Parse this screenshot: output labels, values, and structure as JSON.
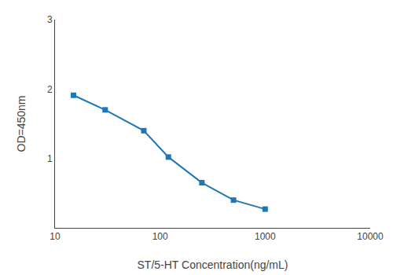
{
  "chart_data": {
    "type": "line",
    "x": [
      15,
      30,
      70,
      120,
      250,
      500,
      1000
    ],
    "values": [
      1.91,
      1.7,
      1.4,
      1.02,
      0.65,
      0.4,
      0.27
    ],
    "xlabel": "ST/5-HT Concentration(ng/mL)",
    "ylabel": "OD=450nm",
    "xlim": [
      10,
      10000
    ],
    "ylim": [
      0,
      3
    ],
    "xticks": [
      10,
      100,
      1000,
      10000
    ],
    "yticks": [
      1,
      2,
      3
    ],
    "log": "x",
    "grid": false,
    "marker": "square"
  }
}
